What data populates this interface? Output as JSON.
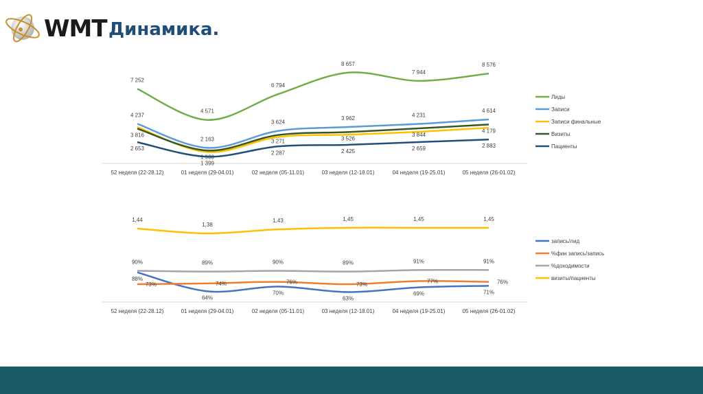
{
  "header": {
    "brand": "WMT",
    "title": "Динамика."
  },
  "chart_data": [
    {
      "type": "line",
      "categories": [
        "52 неделя (22-28.12)",
        "01 неделя (29-04.01)",
        "02 неделя (05-11.01)",
        "03 неделя (12-18.01)",
        "04 неделя (19-25.01)",
        "05 неделя (26-01.02)"
      ],
      "legend": "right",
      "grid": false,
      "series": [
        {
          "name": "Лиды",
          "color": "#70ad47",
          "values": [
            7252,
            4571,
            6794,
            8657,
            7944,
            8576
          ],
          "labels": [
            "7 252",
            "4 571",
            "6 794",
            "8 657",
            "7 944",
            "8 576"
          ]
        },
        {
          "name": "Записи",
          "color": "#5b9bd5",
          "values": [
            4237,
            2163,
            3624,
            3962,
            4231,
            4614
          ],
          "labels": [
            "4 237",
            "2 163",
            "3 624",
            "3 962",
            "4 231",
            "4 614"
          ]
        },
        {
          "name": "Записи финальные",
          "color": "#ffc000",
          "values": [
            3950,
            1800,
            3100,
            3300,
            3550,
            3900
          ],
          "labels": []
        },
        {
          "name": "Визиты",
          "color": "#375623",
          "values": [
            3816,
            1930,
            3271,
            3526,
            3844,
            4179
          ],
          "labels": [
            "3 816",
            "1 930",
            "3 271",
            "3 526",
            "3 844",
            "4 179"
          ]
        },
        {
          "name": "Пациенты",
          "color": "#1f4e79",
          "values": [
            2653,
            1399,
            2287,
            2425,
            2659,
            2883
          ],
          "labels": [
            "2 653",
            "1 399",
            "2 287",
            "2 425",
            "2 659",
            "2 883"
          ]
        }
      ]
    },
    {
      "type": "line",
      "categories": [
        "52 неделя (22-28.12)",
        "01 неделя (29-04.01)",
        "02 неделя (05-11.01)",
        "03 неделя (12-18.01)",
        "04 неделя (19-25.01)",
        "05 неделя (26-01.02)"
      ],
      "legend": "right",
      "grid": false,
      "series": [
        {
          "name": "запись/лид",
          "color": "#4472c4",
          "axis": "percent",
          "values": [
            88,
            64,
            70,
            63,
            69,
            71
          ],
          "labels": [
            "88%",
            "64%",
            "70%",
            "63%",
            "69%",
            "71%"
          ]
        },
        {
          "name": "%фин запись/запись",
          "color": "#ed7d31",
          "axis": "percent",
          "values": [
            73,
            74,
            76,
            73,
            77,
            76
          ],
          "labels": [
            "73%",
            "74%",
            "76%",
            "73%",
            "77%",
            "76%"
          ]
        },
        {
          "name": "%доходимости",
          "color": "#a5a5a5",
          "axis": "percent",
          "values": [
            90,
            89,
            90,
            89,
            91,
            91
          ],
          "labels": [
            "90%",
            "89%",
            "90%",
            "89%",
            "91%",
            "91%"
          ]
        },
        {
          "name": "визиты/пациенты",
          "color": "#ffc000",
          "axis": "ratio",
          "values": [
            1.44,
            1.38,
            1.43,
            1.45,
            1.45,
            1.45
          ],
          "labels": [
            "1,44",
            "1,38",
            "1,43",
            "1,45",
            "1,45",
            "1,45"
          ]
        }
      ]
    }
  ]
}
